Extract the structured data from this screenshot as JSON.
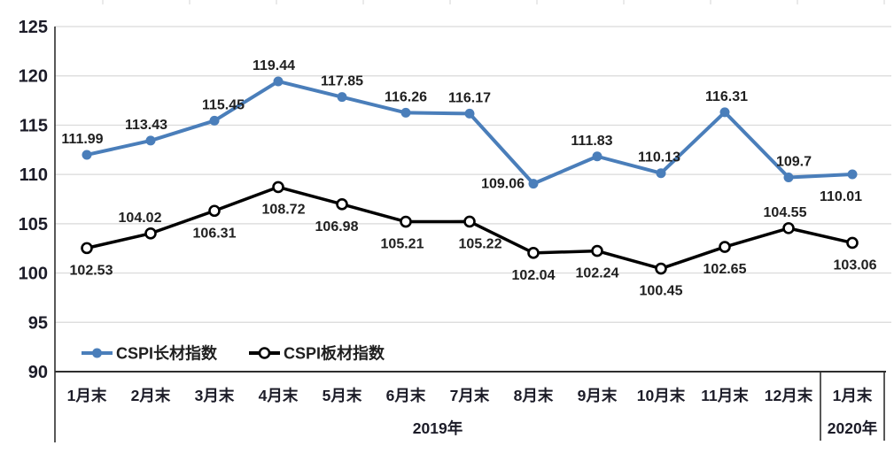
{
  "chart_data": {
    "type": "line",
    "title": "",
    "xlabel": "",
    "ylabel": "",
    "categories": [
      "1月末",
      "2月末",
      "3月末",
      "4月末",
      "5月末",
      "6月末",
      "7月末",
      "8月末",
      "9月末",
      "10月末",
      "11月末",
      "12月末",
      "1月末"
    ],
    "x_groups": [
      {
        "label": "2019年",
        "span": [
          0,
          11
        ]
      },
      {
        "label": "2020年",
        "span": [
          12,
          12
        ]
      }
    ],
    "yticks": [
      125,
      120,
      115,
      110,
      105,
      100,
      95,
      90
    ],
    "ylim": [
      90,
      125
    ],
    "grid": true,
    "legend_position": "bottom-left-inside",
    "series": [
      {
        "name": "CSPI长材指数",
        "color": "#4a7eba",
        "marker": "filled-circle",
        "values": [
          111.99,
          113.43,
          115.45,
          119.44,
          117.85,
          116.26,
          116.17,
          109.06,
          111.83,
          110.13,
          116.31,
          109.7,
          110.01
        ],
        "label_pos": [
          "above",
          "above",
          "above",
          "above",
          "above",
          "above",
          "above",
          "left",
          "above",
          "above",
          "above",
          "above",
          "below"
        ],
        "label_dx": [
          -5,
          -5,
          10,
          -5,
          0,
          0,
          0,
          0,
          -6,
          -2,
          2,
          6,
          -13
        ]
      },
      {
        "name": "CSPI板材指数",
        "color": "#000000",
        "marker": "open-circle",
        "values": [
          102.53,
          104.02,
          106.31,
          108.72,
          106.98,
          105.21,
          105.22,
          102.04,
          102.24,
          100.45,
          102.65,
          104.55,
          103.06
        ],
        "label_pos": [
          "below",
          "above",
          "below",
          "below",
          "below",
          "below",
          "below",
          "below",
          "below",
          "below",
          "below",
          "above",
          "below"
        ],
        "label_dx": [
          5,
          -12,
          0,
          6,
          -6,
          -4,
          12,
          0,
          0,
          0,
          0,
          -4,
          3
        ]
      }
    ],
    "colors": {
      "grid": "#d9d9d9",
      "axis": "#2e2e2e",
      "text": "#1c1c28",
      "label_text": "#1f1f1f"
    }
  }
}
